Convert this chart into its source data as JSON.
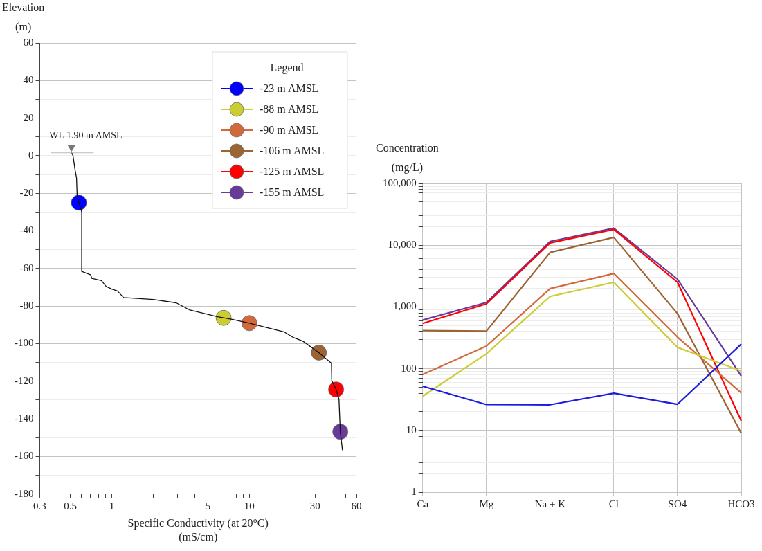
{
  "chart_data": [
    {
      "type": "line",
      "xlabel": "Specific Conductivity (at 20°C) (mS/cm)",
      "ylabel": "Elevation (m)",
      "log": "x",
      "grid": "y",
      "legend": "top right",
      "legend_title": "Legend",
      "xlim": [
        0.3,
        60
      ],
      "xticks": [
        0.3,
        {
          "value": 0.4,
          "label": null
        },
        0.5,
        {
          "value": 0.6,
          "label": null
        },
        {
          "value": 0.7,
          "label": null
        },
        {
          "value": 0.8,
          "label": null
        },
        {
          "value": 0.9,
          "label": null
        },
        1,
        {
          "value": 2,
          "label": null
        },
        {
          "value": 3,
          "label": null
        },
        {
          "value": 4,
          "label": null
        },
        5,
        {
          "value": 6,
          "label": null
        },
        {
          "value": 7,
          "label": null
        },
        {
          "value": 8,
          "label": null
        },
        {
          "value": 9,
          "label": null
        },
        10,
        {
          "value": 20,
          "label": null
        },
        30,
        {
          "value": 40,
          "label": null
        },
        {
          "value": 50,
          "label": null
        },
        60
      ],
      "ylim": [
        -180,
        60
      ],
      "yticks": [
        -180,
        {
          "value": -170,
          "label": null
        },
        -160,
        {
          "value": -150,
          "label": null
        },
        -140,
        {
          "value": -130,
          "label": null
        },
        -120,
        {
          "value": -110,
          "label": null
        },
        -100,
        {
          "value": -90,
          "label": null
        },
        -80,
        {
          "value": -70,
          "label": null
        },
        -60,
        {
          "value": -50,
          "label": null
        },
        -40,
        {
          "value": -30,
          "label": null
        },
        -20,
        {
          "value": -10,
          "label": null
        },
        0,
        {
          "value": 10,
          "label": null
        },
        20,
        {
          "value": 30,
          "label": null
        },
        40,
        {
          "value": 50,
          "label": null
        },
        60
      ],
      "annotations": [
        {
          "text": "WL 1.90 m AMSL",
          "x": 0.51,
          "y": 1.9
        }
      ],
      "series": [
        {
          "type": "line",
          "marker": "none",
          "color": "#111111",
          "x": [
            0.51,
            0.523,
            0.54,
            0.555,
            0.56,
            0.577,
            0.605,
            0.605,
            0.625,
            0.704,
            0.716,
            0.842,
            0.909,
            1.0,
            1.1,
            1.22,
            2.0,
            2.94,
            3.66,
            5.88,
            6.5,
            7.6,
            10.0,
            13.0,
            17.8,
            20.9,
            24.5,
            32.0,
            39.5,
            39.7,
            42.7,
            44.8,
            45.8,
            47.5
          ],
          "values": [
            1.9,
            0,
            -7,
            -12,
            -20.8,
            -25,
            -30,
            -61.6,
            -62,
            -63.4,
            -65.3,
            -66.5,
            -69.5,
            -71,
            -72,
            -75.5,
            -76.5,
            -78.3,
            -82,
            -85.7,
            -86.3,
            -87.2,
            -89.1,
            -91.2,
            -93.7,
            -96.8,
            -98.7,
            -104.8,
            -110.4,
            -119.7,
            -124.4,
            -129.6,
            -146.9,
            -156.7
          ]
        },
        {
          "type": "scatter",
          "marker": "triangle",
          "color": "#777777",
          "x": [
            0.51
          ],
          "values": [
            4.5
          ]
        },
        {
          "type": "scatter",
          "marker": "circle",
          "name": "-23 m AMSL",
          "color": "#0000ff",
          "x": [
            0.577
          ],
          "values": [
            -25
          ]
        },
        {
          "type": "scatter",
          "marker": "circle",
          "name": "-88 m AMSL",
          "color": "#cccc33",
          "x": [
            6.5
          ],
          "values": [
            -86.3
          ]
        },
        {
          "type": "scatter",
          "marker": "circle",
          "name": "-90 m AMSL",
          "color": "#d2693a",
          "x": [
            10.0
          ],
          "values": [
            -89.1
          ]
        },
        {
          "type": "scatter",
          "marker": "circle",
          "name": "-106 m AMSL",
          "color": "#9b6432",
          "x": [
            32.0
          ],
          "values": [
            -104.8
          ]
        },
        {
          "type": "scatter",
          "marker": "circle",
          "name": "-125 m AMSL",
          "color": "#ff0000",
          "x": [
            42.7
          ],
          "values": [
            -124.4
          ]
        },
        {
          "type": "scatter",
          "marker": "circle",
          "name": "-155 m AMSL",
          "color": "#6a3a9a",
          "x": [
            45.8
          ],
          "values": [
            -146.9
          ]
        }
      ]
    },
    {
      "type": "line",
      "ylabel": "Concentration (mg/L)",
      "log": true,
      "grid": true,
      "marker": "none",
      "categories": [
        "Ca",
        "Mg",
        "Na + K",
        "Cl",
        "SO4",
        "HCO3"
      ],
      "ylim": [
        1,
        100000
      ],
      "yticks": [
        1,
        {
          "value": 2,
          "label": null
        },
        {
          "value": 3,
          "label": null
        },
        {
          "value": 4,
          "label": null
        },
        {
          "value": 5,
          "label": null
        },
        {
          "value": 6,
          "label": null
        },
        {
          "value": 7,
          "label": null
        },
        {
          "value": 8,
          "label": null
        },
        {
          "value": 9,
          "label": null
        },
        10,
        {
          "value": 20,
          "label": null
        },
        {
          "value": 30,
          "label": null
        },
        {
          "value": 40,
          "label": null
        },
        {
          "value": 50,
          "label": null
        },
        {
          "value": 60,
          "label": null
        },
        {
          "value": 70,
          "label": null
        },
        {
          "value": 80,
          "label": null
        },
        {
          "value": 90,
          "label": null
        },
        100,
        {
          "value": 200,
          "label": null
        },
        {
          "value": 300,
          "label": null
        },
        {
          "value": 400,
          "label": null
        },
        {
          "value": 500,
          "label": null
        },
        {
          "value": 600,
          "label": null
        },
        {
          "value": 700,
          "label": null
        },
        {
          "value": 800,
          "label": null
        },
        {
          "value": 900,
          "label": null
        },
        {
          "value": 1000,
          "label": "1,000"
        },
        {
          "value": 2000,
          "label": null
        },
        {
          "value": 3000,
          "label": null
        },
        {
          "value": 4000,
          "label": null
        },
        {
          "value": 5000,
          "label": null
        },
        {
          "value": 6000,
          "label": null
        },
        {
          "value": 7000,
          "label": null
        },
        {
          "value": 8000,
          "label": null
        },
        {
          "value": 9000,
          "label": null
        },
        {
          "value": 10000,
          "label": "10,000"
        },
        {
          "value": 20000,
          "label": null
        },
        {
          "value": 30000,
          "label": null
        },
        {
          "value": 40000,
          "label": null
        },
        {
          "value": 50000,
          "label": null
        },
        {
          "value": 60000,
          "label": null
        },
        {
          "value": 70000,
          "label": null
        },
        {
          "value": 80000,
          "label": null
        },
        {
          "value": 90000,
          "label": null
        },
        {
          "value": 100000,
          "label": "100,000"
        }
      ],
      "series": [
        {
          "color": "#1a1ae0",
          "values": [
            51.9,
            26.2,
            26.0,
            40.0,
            26.5,
            250
          ]
        },
        {
          "color": "#cccc33",
          "values": [
            35.7,
            174,
            1480,
            2510,
            221,
            91.4
          ]
        },
        {
          "color": "#d2693a",
          "values": [
            80.7,
            232,
            1980,
            3480,
            324,
            40.5
          ]
        },
        {
          "color": "#9b6432",
          "values": [
            413,
            405,
            7650,
            13400,
            778,
            9.0
          ]
        },
        {
          "color": "#ff0000",
          "values": [
            541,
            1120,
            10900,
            18000,
            2510,
            14.3
          ]
        },
        {
          "color": "#6a3a9a",
          "values": [
            612,
            1180,
            11500,
            18900,
            2820,
            76.2
          ]
        }
      ]
    }
  ]
}
